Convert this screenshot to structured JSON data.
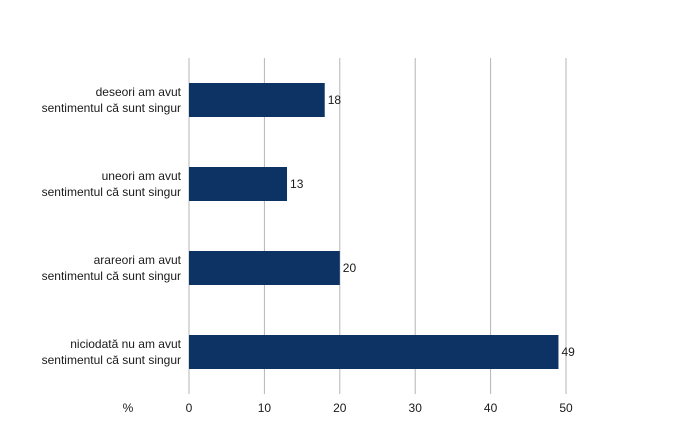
{
  "chart_data": {
    "type": "bar",
    "orientation": "horizontal",
    "categories": [
      [
        "deseori am avut",
        "sentimentul că sunt singur"
      ],
      [
        "uneori am avut",
        "sentimentul că sunt singur"
      ],
      [
        "arareori am avut",
        "sentimentul că sunt singur"
      ],
      [
        "niciodată nu am avut",
        "sentimentul că sunt singur"
      ]
    ],
    "values": [
      18,
      13,
      20,
      49
    ],
    "data_labels": [
      "18",
      "13",
      "20",
      "49"
    ],
    "xlim": [
      0,
      50
    ],
    "xticks": [
      0,
      10,
      20,
      30,
      40,
      50
    ],
    "x_unit_label": "%",
    "grid": true,
    "bar_color": "#0d3264",
    "grid_color": "#b5b5b5",
    "title": "",
    "xlabel": "",
    "ylabel": ""
  }
}
